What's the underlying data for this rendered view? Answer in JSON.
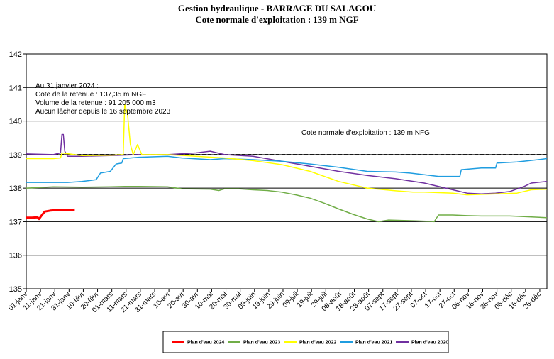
{
  "header": {
    "title": "Gestion hydraulique - BARRAGE DU SALAGOU",
    "subtitle": "Cote normale d'exploitation : 139 m NGF"
  },
  "annotation": {
    "lines": [
      "Au 31 janvier 2024 :",
      "Cote de la retenue : 137,35 m NGF",
      "Volume de la retenue : 91 205 000 m3",
      "Aucun lâcher depuis le 16 septembre 2023"
    ],
    "reference_label": "Cote normale d'exploitation : 139 m NFG"
  },
  "chart_data": {
    "type": "line",
    "title": "Gestion hydraulique - BARRAGE DU SALAGOU",
    "subtitle": "Cote normale d'exploitation : 139 m NGF",
    "xlabel": "",
    "ylabel": "",
    "x_domain": [
      1,
      366
    ],
    "ylim": [
      135,
      142
    ],
    "yticks": [
      135,
      136,
      137,
      138,
      139,
      140,
      141,
      142
    ],
    "grid": true,
    "legend_position": "bottom",
    "x_ticks": [
      {
        "day": 1,
        "label": "01-janv"
      },
      {
        "day": 11,
        "label": "11-janv"
      },
      {
        "day": 21,
        "label": "21-janv"
      },
      {
        "day": 31,
        "label": "31-janv"
      },
      {
        "day": 41,
        "label": "10-févr"
      },
      {
        "day": 51,
        "label": "20-févr"
      },
      {
        "day": 61,
        "label": "01-mars"
      },
      {
        "day": 71,
        "label": "11-mars"
      },
      {
        "day": 81,
        "label": "21-mars"
      },
      {
        "day": 91,
        "label": "31-mars"
      },
      {
        "day": 101,
        "label": "10-avr"
      },
      {
        "day": 111,
        "label": "20-avr"
      },
      {
        "day": 121,
        "label": "30-avr"
      },
      {
        "day": 131,
        "label": "10-mai"
      },
      {
        "day": 141,
        "label": "20-mai"
      },
      {
        "day": 151,
        "label": "30-mai"
      },
      {
        "day": 161,
        "label": "09-juin"
      },
      {
        "day": 171,
        "label": "19-juin"
      },
      {
        "day": 181,
        "label": "29-juin"
      },
      {
        "day": 191,
        "label": "09-juil"
      },
      {
        "day": 201,
        "label": "19-juil"
      },
      {
        "day": 211,
        "label": "29-juil"
      },
      {
        "day": 221,
        "label": "08-août"
      },
      {
        "day": 231,
        "label": "18-août"
      },
      {
        "day": 241,
        "label": "28-août"
      },
      {
        "day": 251,
        "label": "07-sept"
      },
      {
        "day": 261,
        "label": "17-sept"
      },
      {
        "day": 271,
        "label": "27-sept"
      },
      {
        "day": 281,
        "label": "07-oct"
      },
      {
        "day": 291,
        "label": "17-oct"
      },
      {
        "day": 301,
        "label": "27-oct"
      },
      {
        "day": 311,
        "label": "06-nov"
      },
      {
        "day": 321,
        "label": "16-nov"
      },
      {
        "day": 331,
        "label": "26-nov"
      },
      {
        "day": 341,
        "label": "06-déc"
      },
      {
        "day": 351,
        "label": "16-déc"
      },
      {
        "day": 361,
        "label": "26-déc"
      }
    ],
    "reference_line": {
      "y": 139,
      "color": "#000000",
      "label": "Cote normale d'exploitation : 139 m NFG"
    },
    "series": [
      {
        "name": "Plan d'eau 2024",
        "color": "#ff0000",
        "points": [
          [
            1,
            137.12
          ],
          [
            5,
            137.12
          ],
          [
            9,
            137.13
          ],
          [
            10,
            137.08
          ],
          [
            12,
            137.2
          ],
          [
            14,
            137.3
          ],
          [
            18,
            137.33
          ],
          [
            24,
            137.35
          ],
          [
            31,
            137.35
          ],
          [
            35,
            137.36
          ]
        ]
      },
      {
        "name": "Plan d'eau 2023",
        "color": "#70ad47",
        "points": [
          [
            1,
            138.0
          ],
          [
            10,
            138.02
          ],
          [
            20,
            138.04
          ],
          [
            40,
            138.03
          ],
          [
            60,
            138.04
          ],
          [
            70,
            138.05
          ],
          [
            80,
            138.05
          ],
          [
            100,
            138.04
          ],
          [
            110,
            137.98
          ],
          [
            130,
            137.97
          ],
          [
            136,
            137.93
          ],
          [
            140,
            137.98
          ],
          [
            150,
            137.98
          ],
          [
            160,
            137.95
          ],
          [
            170,
            137.93
          ],
          [
            180,
            137.88
          ],
          [
            190,
            137.8
          ],
          [
            200,
            137.7
          ],
          [
            210,
            137.55
          ],
          [
            220,
            137.38
          ],
          [
            230,
            137.22
          ],
          [
            240,
            137.08
          ],
          [
            248,
            137.0
          ],
          [
            255,
            137.05
          ],
          [
            270,
            137.03
          ],
          [
            285,
            137.01
          ],
          [
            287,
            137.0
          ],
          [
            290,
            137.2
          ],
          [
            300,
            137.2
          ],
          [
            310,
            137.18
          ],
          [
            320,
            137.17
          ],
          [
            340,
            137.17
          ],
          [
            350,
            137.15
          ],
          [
            366,
            137.12
          ]
        ]
      },
      {
        "name": "Plan d'eau 2022",
        "color": "#ffff00",
        "points": [
          [
            1,
            138.88
          ],
          [
            20,
            138.88
          ],
          [
            25,
            138.9
          ],
          [
            26,
            139.05
          ],
          [
            40,
            138.97
          ],
          [
            60,
            138.98
          ],
          [
            69,
            139.0
          ],
          [
            70,
            140.5
          ],
          [
            72,
            140.2
          ],
          [
            74,
            139.3
          ],
          [
            76,
            139.0
          ],
          [
            79,
            139.3
          ],
          [
            82,
            139.0
          ],
          [
            100,
            139.0
          ],
          [
            120,
            138.95
          ],
          [
            140,
            138.9
          ],
          [
            160,
            138.82
          ],
          [
            180,
            138.7
          ],
          [
            200,
            138.5
          ],
          [
            220,
            138.2
          ],
          [
            240,
            138.0
          ],
          [
            260,
            137.92
          ],
          [
            272,
            137.88
          ],
          [
            280,
            137.88
          ],
          [
            300,
            137.85
          ],
          [
            310,
            137.8
          ],
          [
            330,
            137.83
          ],
          [
            345,
            137.85
          ],
          [
            355,
            137.95
          ],
          [
            366,
            137.97
          ]
        ]
      },
      {
        "name": "Plan d'eau 2021",
        "color": "#1f9de0",
        "points": [
          [
            1,
            138.17
          ],
          [
            30,
            138.17
          ],
          [
            40,
            138.2
          ],
          [
            50,
            138.25
          ],
          [
            53,
            138.45
          ],
          [
            60,
            138.5
          ],
          [
            64,
            138.72
          ],
          [
            68,
            138.75
          ],
          [
            69,
            138.88
          ],
          [
            80,
            138.92
          ],
          [
            100,
            138.95
          ],
          [
            110,
            138.9
          ],
          [
            130,
            138.85
          ],
          [
            140,
            138.88
          ],
          [
            160,
            138.85
          ],
          [
            180,
            138.8
          ],
          [
            200,
            138.72
          ],
          [
            220,
            138.62
          ],
          [
            240,
            138.5
          ],
          [
            260,
            138.48
          ],
          [
            270,
            138.45
          ],
          [
            280,
            138.4
          ],
          [
            290,
            138.35
          ],
          [
            305,
            138.35
          ],
          [
            306,
            138.55
          ],
          [
            320,
            138.6
          ],
          [
            330,
            138.6
          ],
          [
            331,
            138.75
          ],
          [
            345,
            138.78
          ],
          [
            360,
            138.85
          ],
          [
            366,
            138.88
          ]
        ]
      },
      {
        "name": "Plan d'eau 2020",
        "color": "#7030a0",
        "points": [
          [
            1,
            139.02
          ],
          [
            20,
            139.0
          ],
          [
            25,
            139.05
          ],
          [
            26,
            139.6
          ],
          [
            27,
            139.6
          ],
          [
            28,
            139.1
          ],
          [
            30,
            138.95
          ],
          [
            40,
            138.95
          ],
          [
            60,
            138.97
          ],
          [
            80,
            139.0
          ],
          [
            100,
            139.0
          ],
          [
            120,
            139.05
          ],
          [
            130,
            139.1
          ],
          [
            140,
            139.0
          ],
          [
            160,
            138.95
          ],
          [
            180,
            138.8
          ],
          [
            200,
            138.65
          ],
          [
            220,
            138.5
          ],
          [
            240,
            138.38
          ],
          [
            260,
            138.28
          ],
          [
            280,
            138.15
          ],
          [
            300,
            137.95
          ],
          [
            310,
            137.85
          ],
          [
            320,
            137.83
          ],
          [
            330,
            137.85
          ],
          [
            340,
            137.9
          ],
          [
            350,
            138.05
          ],
          [
            355,
            138.15
          ],
          [
            366,
            138.2
          ]
        ]
      }
    ]
  }
}
